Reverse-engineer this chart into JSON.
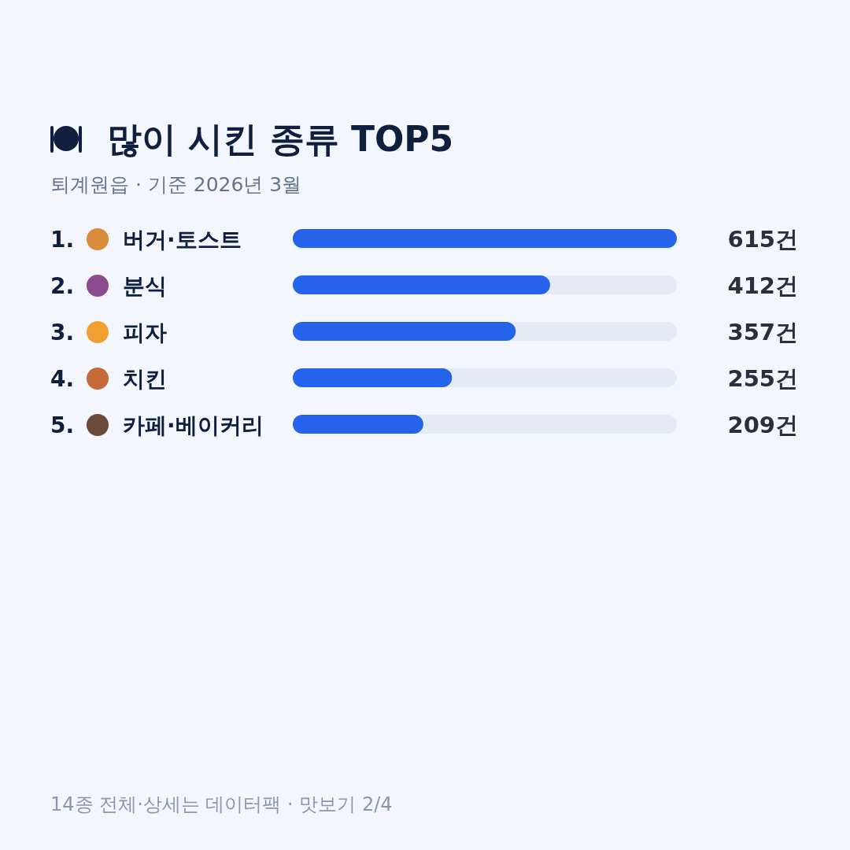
{
  "chart_data": {
    "type": "bar",
    "orientation": "horizontal",
    "title": "많이 시킨 종류 TOP5",
    "subtitle": "퇴계원읍 · 기준 2026년 3월",
    "categories": [
      "1. 버거·토스트",
      "2. 분식",
      "3. 피자",
      "4. 치킨",
      "5. 카페·베이커리"
    ],
    "values": [
      615,
      412,
      357,
      255,
      209
    ],
    "value_labels": [
      "615건",
      "412건",
      "357건",
      "255건",
      "209건"
    ],
    "color": "#2563eb",
    "annotations": [
      "14종 전체·상세는 데이터팩 · 맛보기 2/4"
    ]
  }
}
